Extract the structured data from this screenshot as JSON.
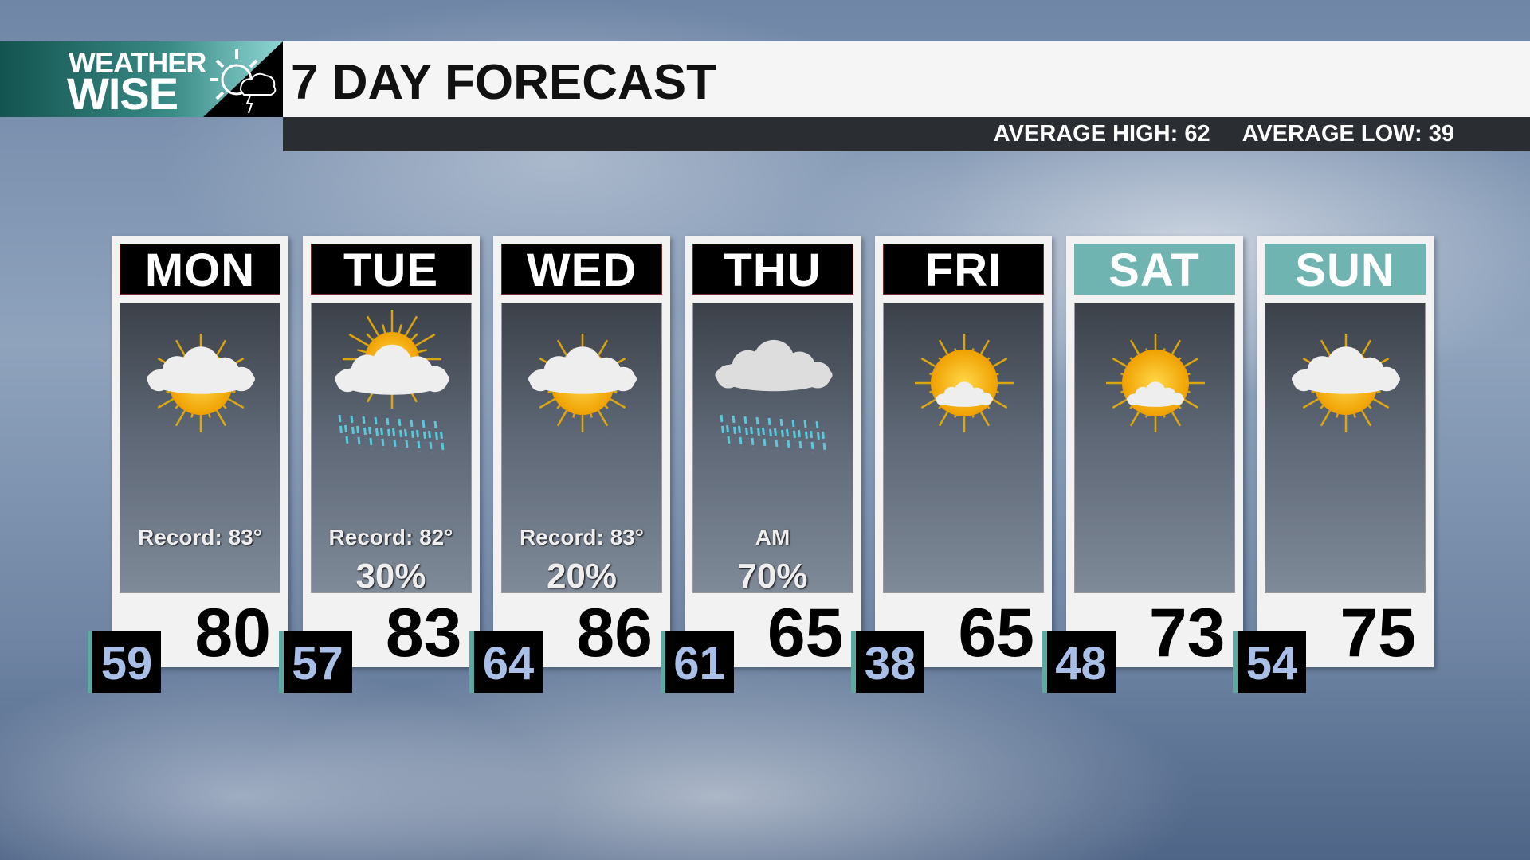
{
  "header": {
    "logo_line1": "WEATHER",
    "logo_line2": "WISE",
    "title": "7 DAY FORECAST",
    "average_high": "AVERAGE HIGH: 62",
    "average_low": "AVERAGE LOW: 39"
  },
  "colors": {
    "brand_teal": "#13544f",
    "weekend_header": "#6fb4b0",
    "low_temp_text": "#a9bfe8"
  },
  "days": [
    {
      "day": "MON",
      "icon": "partly-sunny-icon",
      "note": "Record: 83°",
      "precip": "",
      "high": "80",
      "low": "59",
      "weekend": false
    },
    {
      "day": "TUE",
      "icon": "sun-cloud-rain-icon",
      "note": "Record: 82°",
      "precip": "30%",
      "high": "83",
      "low": "57",
      "weekend": false
    },
    {
      "day": "WED",
      "icon": "partly-sunny-icon",
      "note": "Record: 83°",
      "precip": "20%",
      "high": "86",
      "low": "64",
      "weekend": false
    },
    {
      "day": "THU",
      "icon": "cloud-rain-icon",
      "note": "AM",
      "precip": "70%",
      "high": "65",
      "low": "61",
      "weekend": false
    },
    {
      "day": "FRI",
      "icon": "mostly-sunny-icon",
      "note": "",
      "precip": "",
      "high": "65",
      "low": "38",
      "weekend": false
    },
    {
      "day": "SAT",
      "icon": "mostly-sunny-icon",
      "note": "",
      "precip": "",
      "high": "73",
      "low": "48",
      "weekend": true
    },
    {
      "day": "SUN",
      "icon": "partly-sunny-icon",
      "note": "",
      "precip": "",
      "high": "75",
      "low": "54",
      "weekend": true
    }
  ]
}
